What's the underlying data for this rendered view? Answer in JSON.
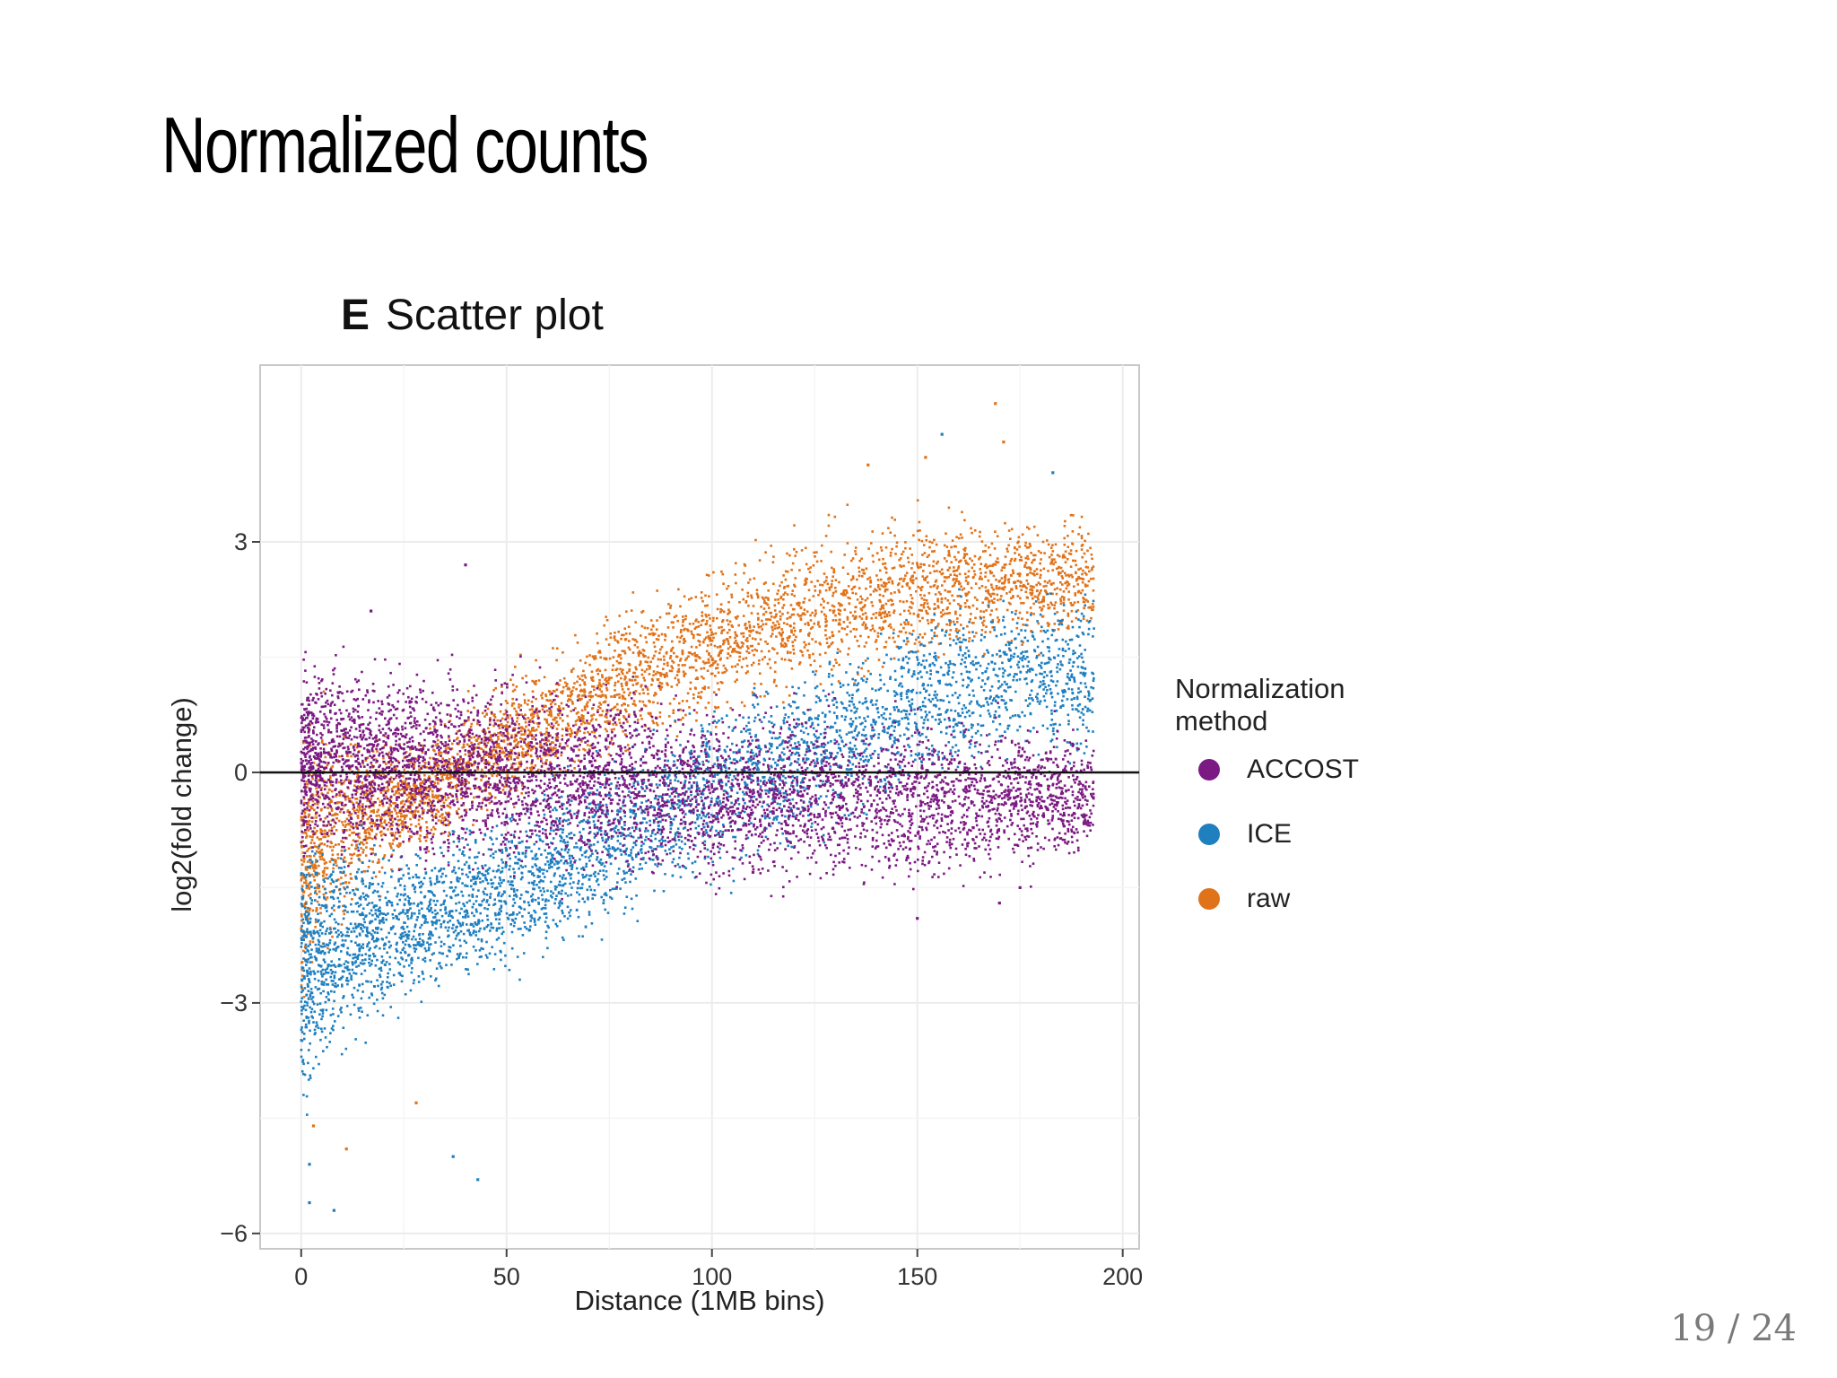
{
  "slide": {
    "title": "Normalized counts",
    "page_number": "19 / 24"
  },
  "figure": {
    "panel_letter": "E",
    "panel_title": "Scatter plot"
  },
  "colors": {
    "ACCOST": "#7b1a82",
    "ICE": "#1f7fbf",
    "raw": "#e0731a",
    "zero_line": "#111111"
  },
  "chart_data": {
    "type": "scatter",
    "title": "E Scatter plot",
    "xlabel": "Distance (1MB bins)",
    "ylabel": "log2(fold change)",
    "xlim": [
      -10,
      204
    ],
    "ylim": [
      -6.2,
      5.3
    ],
    "x_ticks": [
      "0",
      "50",
      "100",
      "150",
      "200"
    ],
    "y_ticks": [
      "3",
      "0",
      "−3",
      "−6"
    ],
    "x_tick_values": [
      0,
      50,
      100,
      150,
      200
    ],
    "y_tick_values": [
      3,
      0,
      -3,
      -6
    ],
    "grid": true,
    "reference_line_y": 0,
    "legend": {
      "title": "Normalization\nmethod",
      "position": "right",
      "entries": [
        "ACCOST",
        "ICE",
        "raw"
      ]
    },
    "series": [
      {
        "name": "ACCOST",
        "trend": [
          [
            0,
            0.2
          ],
          [
            25,
            0.1
          ],
          [
            50,
            0.0
          ],
          [
            75,
            -0.1
          ],
          [
            100,
            -0.3
          ],
          [
            125,
            -0.3
          ],
          [
            150,
            -0.4
          ],
          [
            175,
            -0.3
          ],
          [
            193,
            -0.3
          ]
        ],
        "spread": [
          [
            0,
            0.9
          ],
          [
            50,
            0.85
          ],
          [
            100,
            0.8
          ],
          [
            150,
            0.75
          ],
          [
            193,
            0.6
          ]
        ],
        "outliers": [
          [
            40,
            2.7
          ],
          [
            17,
            2.1
          ],
          [
            110,
            -1.3
          ],
          [
            150,
            -1.9
          ],
          [
            170,
            -1.7
          ],
          [
            175,
            -1.5
          ]
        ]
      },
      {
        "name": "ICE",
        "trend": [
          [
            0,
            -2.6
          ],
          [
            10,
            -2.2
          ],
          [
            25,
            -2.0
          ],
          [
            50,
            -1.5
          ],
          [
            75,
            -0.9
          ],
          [
            100,
            -0.2
          ],
          [
            125,
            0.3
          ],
          [
            150,
            0.9
          ],
          [
            175,
            1.3
          ],
          [
            193,
            1.2
          ]
        ],
        "spread": [
          [
            0,
            1.2
          ],
          [
            25,
            0.7
          ],
          [
            100,
            0.8
          ],
          [
            150,
            0.8
          ],
          [
            193,
            0.8
          ]
        ],
        "outliers": [
          [
            2,
            -5.6
          ],
          [
            8,
            -5.7
          ],
          [
            2,
            -5.1
          ],
          [
            43,
            -5.3
          ],
          [
            37,
            -5.0
          ],
          [
            156,
            4.4
          ],
          [
            183,
            3.9
          ]
        ]
      },
      {
        "name": "raw",
        "trend": [
          [
            0,
            -1.3
          ],
          [
            5,
            -0.8
          ],
          [
            25,
            -0.4
          ],
          [
            50,
            0.4
          ],
          [
            75,
            1.1
          ],
          [
            100,
            1.7
          ],
          [
            125,
            2.1
          ],
          [
            150,
            2.4
          ],
          [
            175,
            2.5
          ],
          [
            193,
            2.5
          ]
        ],
        "spread": [
          [
            0,
            1.2
          ],
          [
            25,
            0.5
          ],
          [
            100,
            0.7
          ],
          [
            150,
            0.7
          ],
          [
            193,
            0.6
          ]
        ],
        "outliers": [
          [
            169,
            4.8
          ],
          [
            171,
            4.3
          ],
          [
            152,
            4.1
          ],
          [
            138,
            4.0
          ],
          [
            3,
            -4.6
          ],
          [
            11,
            -4.9
          ],
          [
            28,
            -4.3
          ]
        ]
      }
    ]
  }
}
